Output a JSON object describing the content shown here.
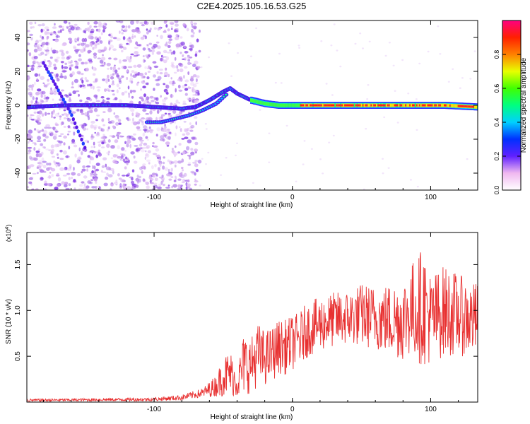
{
  "title": "C2E4.2025.105.16.53.G25",
  "chart_data": [
    {
      "type": "heatmap",
      "xlabel": "Height of straight line (km)",
      "ylabel": "Frequency (Hz)",
      "xlim": [
        -192,
        134
      ],
      "ylim": [
        -50,
        50
      ],
      "x_ticks": [
        -100,
        0,
        100
      ],
      "y_ticks": [
        -40,
        -20,
        0,
        20,
        40
      ],
      "colorbar": {
        "label": "Normalized spectral amplitude",
        "range": [
          0,
          1
        ],
        "ticks": [
          "0.0",
          "0.2",
          "0.4",
          "0.6",
          "0.8"
        ],
        "colors": [
          "#ffffff",
          "#f0b8f0",
          "#6020ff",
          "#0030ff",
          "#00d0ff",
          "#00ff80",
          "#40ff00",
          "#e8ff00",
          "#ff8000",
          "#ff2000",
          "#ff0080"
        ]
      },
      "ridge": {
        "x": [
          -192,
          -160,
          -140,
          -120,
          -100,
          -80,
          -70,
          -60,
          -50,
          -45,
          -40,
          -30,
          -20,
          -10,
          0,
          20,
          60,
          80,
          100,
          110,
          134
        ],
        "y": [
          -1,
          0,
          0,
          0,
          -1,
          -2,
          -1,
          3,
          8,
          10,
          7,
          3,
          1,
          0,
          0,
          0,
          0,
          0,
          0,
          0,
          -1
        ]
      },
      "lower_branch": {
        "x": [
          -105,
          -95,
          -85,
          -75,
          -65,
          -55,
          -47
        ],
        "y": [
          -10,
          -10,
          -8,
          -6,
          -3,
          1,
          7
        ]
      },
      "diagonal_branch": {
        "x": [
          -180,
          -170,
          -160,
          -150
        ],
        "y": [
          25,
          10,
          -5,
          -25
        ]
      }
    },
    {
      "type": "line",
      "xlabel": "Height of straight line (km)",
      "ylabel": "SNR (10 * v/v)",
      "y_scale_label": "(x10^4)",
      "x_ticks": [
        -100,
        0,
        100
      ],
      "y_ticks": [
        "0.5",
        "1.0",
        "1.5"
      ],
      "xlim": [
        -192,
        134
      ],
      "ylim": [
        0,
        18500
      ],
      "color": "#e83232",
      "series": [
        {
          "x": [
            -192,
            -150,
            -100,
            -80,
            -65,
            -55,
            -50,
            -45,
            -40,
            -35,
            -30,
            -25,
            -20,
            -15,
            -10,
            -5,
            0,
            5,
            10,
            20,
            30,
            40,
            50,
            60,
            70,
            80,
            85,
            90,
            95,
            100,
            105,
            110,
            120,
            130,
            134
          ],
          "values": [
            200,
            250,
            300,
            500,
            1000,
            1800,
            2800,
            3200,
            2000,
            4200,
            4000,
            5200,
            4800,
            5200,
            6000,
            6000,
            6500,
            6800,
            7800,
            8500,
            9000,
            9200,
            9500,
            9200,
            9000,
            9000,
            10000,
            10200,
            10500,
            9000,
            9500,
            10000,
            9500,
            9000,
            9200
          ],
          "amplitude": [
            150,
            150,
            200,
            300,
            500,
            1200,
            2200,
            2500,
            1500,
            3500,
            3000,
            3500,
            3000,
            3000,
            3000,
            3000,
            3000,
            3000,
            3000,
            3000,
            3000,
            3000,
            3500,
            3500,
            4000,
            4500,
            5000,
            6000,
            6500,
            5000,
            5000,
            5000,
            4500,
            4000,
            4000
          ]
        }
      ]
    }
  ]
}
